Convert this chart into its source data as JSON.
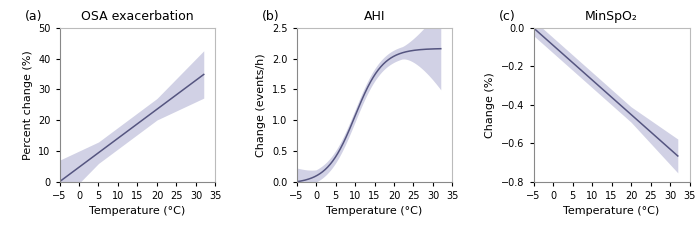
{
  "panel_a": {
    "title": "OSA exacerbation",
    "ylabel": "Percent change (%)",
    "xlabel": "Temperature (°C)",
    "label": "(a)",
    "xlim": [
      -5,
      35
    ],
    "ylim": [
      0,
      50
    ],
    "yticks": [
      0,
      10,
      20,
      30,
      40,
      50
    ],
    "xticks": [
      -5,
      0,
      5,
      10,
      15,
      20,
      25,
      30,
      35
    ]
  },
  "panel_b": {
    "title": "AHI",
    "ylabel": "Change (events/h)",
    "xlabel": "Temperature (°C)",
    "label": "(b)",
    "xlim": [
      -5,
      35
    ],
    "ylim": [
      0.0,
      2.5
    ],
    "yticks": [
      0.0,
      0.5,
      1.0,
      1.5,
      2.0,
      2.5
    ],
    "xticks": [
      -5,
      0,
      5,
      10,
      15,
      20,
      25,
      30,
      35
    ]
  },
  "panel_c": {
    "title": "MinSpO₂",
    "ylabel": "Change (%)",
    "xlabel": "Temperature (°C)",
    "label": "(c)",
    "xlim": [
      -5,
      35
    ],
    "ylim": [
      -0.8,
      0.0
    ],
    "yticks": [
      -0.8,
      -0.6,
      -0.4,
      -0.2,
      0.0
    ],
    "xticks": [
      -5,
      0,
      5,
      10,
      15,
      20,
      25,
      30,
      35
    ]
  },
  "line_color": "#555580",
  "fill_color": "#8888bb",
  "fill_alpha": 0.38,
  "line_width": 1.1,
  "background_color": "#ffffff"
}
